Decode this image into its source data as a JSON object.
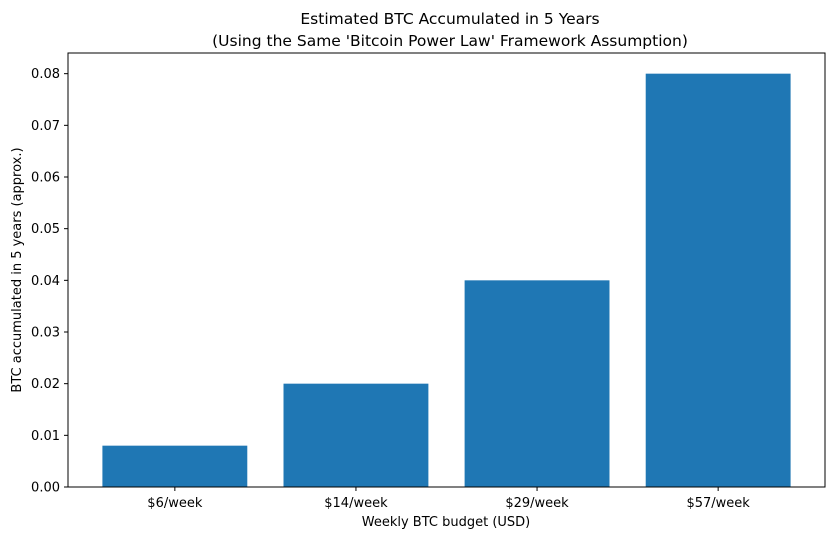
{
  "chart_data": {
    "type": "bar",
    "title": "Estimated BTC Accumulated in 5 Years",
    "subtitle": "(Using the Same 'Bitcoin Power Law' Framework Assumption)",
    "xlabel": "Weekly BTC budget (USD)",
    "ylabel": "BTC accumulated in 5 years (approx.)",
    "categories": [
      "$6/week",
      "$14/week",
      "$29/week",
      "$57/week"
    ],
    "values": [
      0.008,
      0.02,
      0.04,
      0.08
    ],
    "ylim": [
      0,
      0.084
    ],
    "yticks": [
      "0.00",
      "0.01",
      "0.02",
      "0.03",
      "0.04",
      "0.05",
      "0.06",
      "0.07",
      "0.08"
    ],
    "grid": false,
    "bar_color": "#1f77b4"
  }
}
